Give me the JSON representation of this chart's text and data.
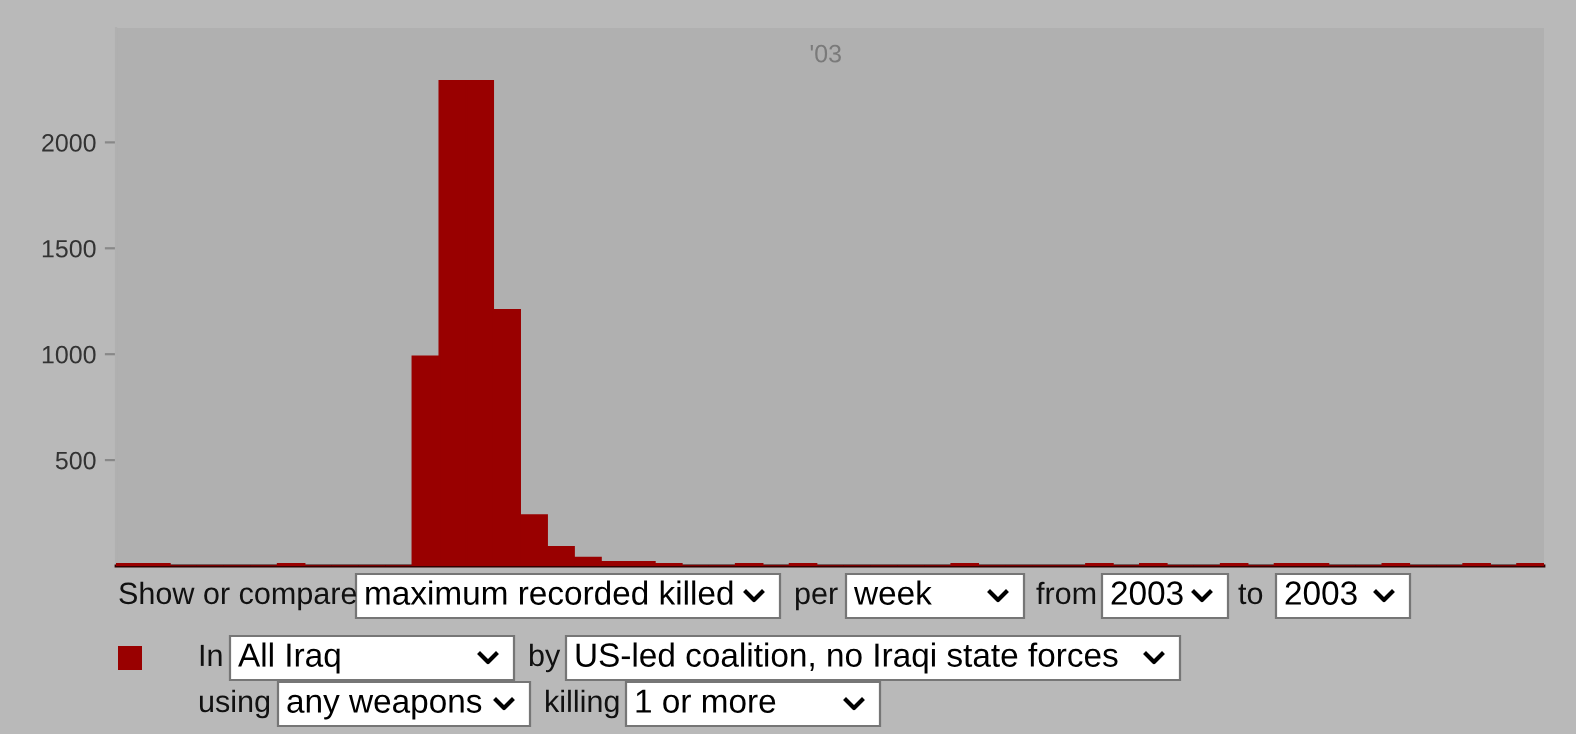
{
  "chart_data": {
    "type": "bar",
    "categories": [
      null,
      null,
      null,
      null,
      null,
      null,
      null,
      null,
      null,
      null,
      null,
      null,
      null,
      null,
      null,
      null,
      null,
      null,
      null,
      null,
      null,
      null,
      null,
      null,
      null,
      null,
      null,
      null,
      null,
      null,
      null,
      null,
      null,
      null,
      null,
      null,
      null,
      null,
      null,
      null,
      null,
      null,
      null,
      null,
      null,
      null,
      null,
      null,
      null,
      null,
      null,
      null,
      null
    ],
    "values": [
      10,
      10,
      0,
      0,
      0,
      0,
      10,
      0,
      0,
      0,
      0,
      990,
      2290,
      2290,
      1210,
      240,
      90,
      40,
      20,
      20,
      10,
      0,
      0,
      10,
      0,
      10,
      0,
      0,
      0,
      0,
      0,
      10,
      0,
      0,
      0,
      0,
      10,
      0,
      10,
      0,
      0,
      10,
      0,
      10,
      10,
      0,
      0,
      10,
      0,
      0,
      10,
      0,
      10
    ],
    "color": "#990000",
    "ylim": [
      0,
      2540
    ],
    "yticks": [
      500,
      1000,
      1500,
      2000
    ],
    "tick_labels": "y",
    "annotations": [
      "'03",
      "Show or compare",
      "maximum recorded killed",
      "per",
      "week",
      "from",
      "2003",
      "to",
      "2003",
      "In",
      "All Iraq",
      "by",
      "US-led coalition, no Iraqi state forces",
      "using",
      "any weapons",
      "killing",
      "1 or more"
    ]
  }
}
